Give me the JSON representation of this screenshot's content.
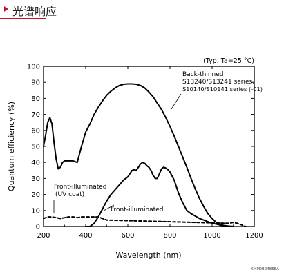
{
  "header": {
    "title": "光谱响应",
    "accent_color": "#c8102e"
  },
  "chart_data": {
    "type": "line",
    "title": "",
    "condition_note": "(Typ. Ta=25 °C)",
    "xlabel": "Wavelength (nm)",
    "ylabel": "Quantum efficiency (%)",
    "xlim": [
      200,
      1200
    ],
    "ylim": [
      0,
      100
    ],
    "x_ticks": [
      200,
      400,
      600,
      800,
      1000,
      1200
    ],
    "y_ticks": [
      0,
      10,
      20,
      30,
      40,
      50,
      60,
      70,
      80,
      90,
      100
    ],
    "grid": false,
    "doc_code": "KMPDB0485EA",
    "series": [
      {
        "name": "Back-thinned S13240/S13241 series, S10140/S10141 series (-01)",
        "label_lines": [
          "Back-thinned",
          "S13240/S13241 series,",
          "S10140/S10141 series (-01)"
        ],
        "style": "solid",
        "x": [
          200,
          210,
          220,
          230,
          240,
          250,
          260,
          270,
          280,
          290,
          300,
          320,
          340,
          360,
          380,
          400,
          420,
          440,
          460,
          480,
          500,
          520,
          540,
          560,
          580,
          600,
          620,
          640,
          660,
          680,
          700,
          720,
          740,
          760,
          780,
          800,
          820,
          840,
          860,
          880,
          900,
          920,
          940,
          960,
          980,
          1000,
          1020,
          1040,
          1060,
          1080,
          1100
        ],
        "y": [
          50,
          57,
          65,
          68,
          64,
          52,
          42,
          36,
          37,
          40,
          41,
          41,
          41,
          40,
          50,
          59,
          64,
          70,
          74.5,
          78.5,
          82,
          84.5,
          86.5,
          88,
          88.8,
          89,
          89,
          88.8,
          88,
          86.5,
          84,
          81,
          77,
          73,
          68,
          62.5,
          56.5,
          50,
          43.5,
          37,
          30,
          23.5,
          17.5,
          12.5,
          8,
          5,
          2.5,
          1.2,
          0.5,
          0.2,
          0
        ]
      },
      {
        "name": "Front-illuminated",
        "label_lines": [
          "Front-illuminated"
        ],
        "style": "solid",
        "x": [
          400,
          420,
          440,
          460,
          480,
          500,
          520,
          540,
          560,
          580,
          600,
          610,
          620,
          630,
          640,
          650,
          660,
          670,
          680,
          690,
          700,
          710,
          720,
          730,
          740,
          750,
          760,
          770,
          780,
          790,
          800,
          820,
          840,
          860,
          880,
          900,
          920,
          940,
          960,
          980,
          1000,
          1020,
          1040,
          1060,
          1080,
          1100
        ],
        "y": [
          0,
          0,
          2,
          6,
          11,
          16,
          20,
          23,
          26,
          29,
          31,
          33,
          35,
          35.5,
          35,
          37,
          39,
          40,
          39.5,
          38,
          37,
          35,
          32,
          30,
          30,
          33,
          36,
          37,
          36.5,
          35.5,
          34,
          29,
          21,
          15,
          10,
          8,
          6.5,
          5,
          4,
          3,
          2,
          1.5,
          0.8,
          0.3,
          0.1,
          0
        ]
      },
      {
        "name": "Front-illuminated (UV coat)",
        "label_lines": [
          "Front-illuminated",
          "(UV coat)"
        ],
        "style": "dashed",
        "x": [
          200,
          220,
          240,
          260,
          280,
          300,
          320,
          340,
          360,
          380,
          400,
          420,
          440,
          460,
          480,
          500,
          1080,
          1100,
          1120,
          1140,
          1160
        ],
        "y": [
          5,
          6,
          6,
          5.5,
          5,
          5.5,
          6,
          6,
          5.5,
          6,
          6,
          6,
          6,
          6,
          5,
          4,
          2,
          2.5,
          2,
          1,
          0
        ]
      }
    ]
  }
}
